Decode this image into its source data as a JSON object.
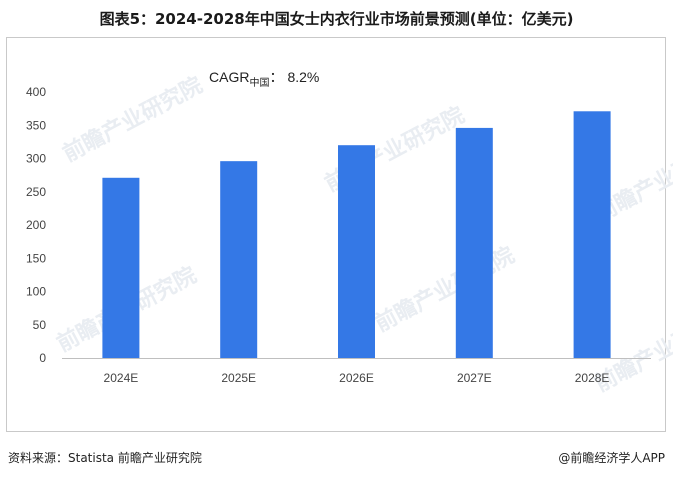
{
  "title": "图表5：2024-2028年中国女士内衣行业市场前景预测(单位：亿美元)",
  "cagr": {
    "label": "CAGR",
    "subscript": "中国",
    "separator": "：",
    "value": "8.2%"
  },
  "watermark": "前瞻产业研究院",
  "source": "资料来源：Statista 前瞻产业研究院",
  "brand": {
    "symbol": "@",
    "name": "前瞻经济学人APP"
  },
  "colors": {
    "bar": "#3478e6",
    "axis": "#bfbfbf"
  },
  "chart_data": {
    "type": "bar",
    "categories": [
      "2024E",
      "2025E",
      "2026E",
      "2027E",
      "2028E"
    ],
    "values": [
      271,
      296,
      320,
      346,
      371
    ],
    "ylim": [
      0,
      400
    ],
    "yticks": [
      0,
      50,
      100,
      150,
      200,
      250,
      300,
      350,
      400
    ],
    "grid": false,
    "legend": "none"
  }
}
